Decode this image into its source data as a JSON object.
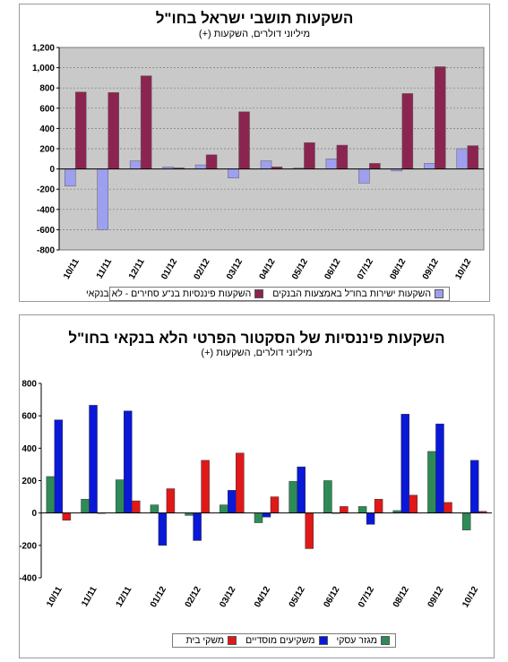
{
  "charts": [
    {
      "id": "chart1",
      "title": "השקעות תושבי ישראל בחו\"ל",
      "subtitle": "מיליוני דולרים, השקעות (+)",
      "legend": [
        {
          "label": "השקעות ישירות בחו\"ל באמצעות הבנקים",
          "color": "#9f9ff0"
        },
        {
          "label": "השקעות פיננסיות בנ\"ע סחירים - לא בנקאי",
          "color": "#8b2550"
        }
      ]
    },
    {
      "id": "chart2",
      "title": "השקעות פיננסיות של הסקטור הפרטי הלא בנקאי בחו\"ל",
      "subtitle": "מיליוני דולרים, השקעות (+)",
      "legend": [
        {
          "label": "מגזר עסקי",
          "color": "#2e8b57"
        },
        {
          "label": "משקיעים מוסדיים",
          "color": "#0a18d8"
        },
        {
          "label": "משקי בית",
          "color": "#e01818"
        }
      ]
    }
  ],
  "chart_data": [
    {
      "type": "bar",
      "title": "השקעות תושבי ישראל בחו\"ל",
      "subtitle": "מיליוני דולרים, השקעות (+)",
      "categories": [
        "10/11",
        "11/11",
        "12/11",
        "01/12",
        "02/12",
        "03/12",
        "04/12",
        "05/12",
        "06/12",
        "07/12",
        "08/12",
        "09/12",
        "10/12"
      ],
      "series": [
        {
          "name": "השקעות ישירות בחו\"ל באמצעות הבנקים",
          "color": "#9f9ff0",
          "values": [
            -170,
            -600,
            80,
            20,
            40,
            -90,
            80,
            10,
            100,
            -140,
            -20,
            55,
            200
          ]
        },
        {
          "name": "השקעות פיננסיות בנ\"ע סחירים - לא בנקאי",
          "color": "#8b2550",
          "values": [
            760,
            755,
            920,
            10,
            140,
            565,
            20,
            260,
            235,
            55,
            745,
            1010,
            230
          ]
        }
      ],
      "ylim": [
        -800,
        1200
      ],
      "yticks": [
        -800,
        -600,
        -400,
        -200,
        0,
        200,
        400,
        600,
        800,
        1000,
        1200
      ],
      "ytick_labels": [
        "-800",
        "-600",
        "-400",
        "-200",
        "0",
        "200",
        "400",
        "600",
        "800",
        "1,000",
        "1,200"
      ],
      "grid": true,
      "legend_position": "bottom"
    },
    {
      "type": "bar",
      "title": "השקעות פיננסיות של הסקטור הפרטי הלא בנקאי בחו\"ל",
      "subtitle": "מיליוני דולרים, השקעות (+)",
      "categories": [
        "10/11",
        "11/11",
        "12/11",
        "01/12",
        "02/12",
        "03/12",
        "04/12",
        "05/12",
        "06/12",
        "07/12",
        "08/12",
        "09/12",
        "10/12"
      ],
      "series": [
        {
          "name": "מגזר עסקי",
          "color": "#2e8b57",
          "values": [
            225,
            85,
            205,
            50,
            -15,
            50,
            -60,
            195,
            200,
            40,
            15,
            380,
            -105
          ]
        },
        {
          "name": "משקיעים מוסדיים",
          "color": "#0a18d8",
          "values": [
            575,
            665,
            630,
            -200,
            -170,
            140,
            -25,
            285,
            0,
            -70,
            610,
            550,
            325
          ]
        },
        {
          "name": "משקי בית",
          "color": "#e01818",
          "values": [
            -45,
            0,
            75,
            150,
            325,
            370,
            100,
            -220,
            40,
            85,
            110,
            65,
            10
          ]
        }
      ],
      "ylim": [
        -400,
        800
      ],
      "yticks": [
        -400,
        -200,
        0,
        200,
        400,
        600,
        800
      ],
      "ytick_labels": [
        "-400",
        "-200",
        "0",
        "200",
        "400",
        "600",
        "800"
      ],
      "grid": false,
      "legend_position": "bottom"
    }
  ]
}
